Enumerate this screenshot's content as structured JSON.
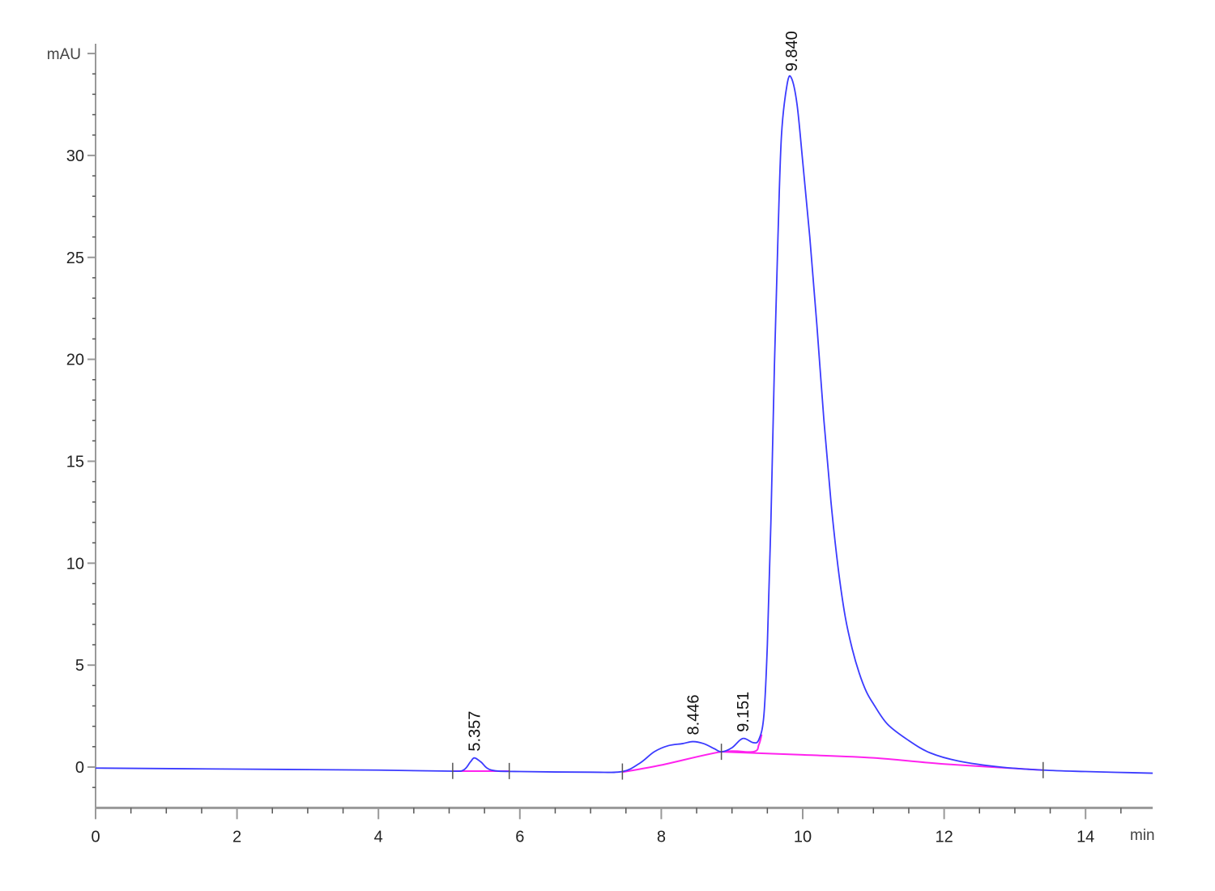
{
  "chart_data": {
    "type": "line",
    "title": "",
    "xlabel": "min",
    "ylabel": "mAU",
    "xlim": [
      0,
      14.95
    ],
    "ylim": [
      -2,
      35
    ],
    "x_ticks": [
      0,
      2,
      4,
      6,
      8,
      10,
      12,
      14
    ],
    "y_ticks": [
      0,
      5,
      10,
      15,
      20,
      25,
      30
    ],
    "grid": false,
    "colors": {
      "signal": "#3b3bff",
      "baseline": "#ff22ee",
      "axis": "#999999"
    },
    "signal": [
      [
        0,
        -0.05
      ],
      [
        2,
        -0.1
      ],
      [
        4,
        -0.15
      ],
      [
        5.0,
        -0.2
      ],
      [
        5.2,
        -0.15
      ],
      [
        5.3,
        0.25
      ],
      [
        5.357,
        0.45
      ],
      [
        5.45,
        0.25
      ],
      [
        5.6,
        -0.15
      ],
      [
        6.0,
        -0.22
      ],
      [
        7.0,
        -0.25
      ],
      [
        7.45,
        -0.22
      ],
      [
        7.7,
        0.2
      ],
      [
        7.9,
        0.75
      ],
      [
        8.1,
        1.05
      ],
      [
        8.3,
        1.15
      ],
      [
        8.446,
        1.25
      ],
      [
        8.6,
        1.15
      ],
      [
        8.75,
        0.9
      ],
      [
        8.85,
        0.75
      ],
      [
        9.0,
        0.95
      ],
      [
        9.151,
        1.4
      ],
      [
        9.3,
        1.2
      ],
      [
        9.38,
        1.35
      ],
      [
        9.45,
        2.5
      ],
      [
        9.5,
        6
      ],
      [
        9.55,
        12
      ],
      [
        9.6,
        19.7
      ],
      [
        9.65,
        26
      ],
      [
        9.7,
        31
      ],
      [
        9.78,
        33.5
      ],
      [
        9.84,
        33.8
      ],
      [
        9.92,
        32.5
      ],
      [
        10.0,
        29.7
      ],
      [
        10.1,
        26
      ],
      [
        10.2,
        21.7
      ],
      [
        10.3,
        17
      ],
      [
        10.4,
        13
      ],
      [
        10.5,
        9.8
      ],
      [
        10.6,
        7.4
      ],
      [
        10.7,
        5.8
      ],
      [
        10.8,
        4.6
      ],
      [
        10.9,
        3.7
      ],
      [
        11.0,
        3.1
      ],
      [
        11.2,
        2.1
      ],
      [
        11.5,
        1.3
      ],
      [
        11.8,
        0.7
      ],
      [
        12.2,
        0.3
      ],
      [
        12.8,
        0.0
      ],
      [
        13.4,
        -0.15
      ],
      [
        14.0,
        -0.22
      ],
      [
        14.95,
        -0.3
      ]
    ],
    "baselines": [
      [
        [
          5.05,
          -0.2
        ],
        [
          5.85,
          -0.2
        ]
      ],
      [
        [
          7.45,
          -0.25
        ],
        [
          8.0,
          0.1
        ],
        [
          8.85,
          0.75
        ],
        [
          9.3,
          0.75
        ],
        [
          9.38,
          1.1
        ],
        [
          9.42,
          1.6
        ]
      ],
      [
        [
          8.85,
          0.75
        ],
        [
          10.0,
          0.6
        ],
        [
          11.0,
          0.45
        ],
        [
          12.0,
          0.15
        ],
        [
          13.4,
          -0.15
        ]
      ]
    ],
    "integration_marks": [
      5.05,
      5.85,
      7.45,
      8.85,
      13.4
    ],
    "peaks": [
      {
        "rt": 5.357,
        "label": "5.357",
        "height": 0.45
      },
      {
        "rt": 8.446,
        "label": "8.446",
        "height": 1.25
      },
      {
        "rt": 9.151,
        "label": "9.151",
        "height": 1.4
      },
      {
        "rt": 9.84,
        "label": "9.840",
        "height": 33.8
      }
    ]
  }
}
